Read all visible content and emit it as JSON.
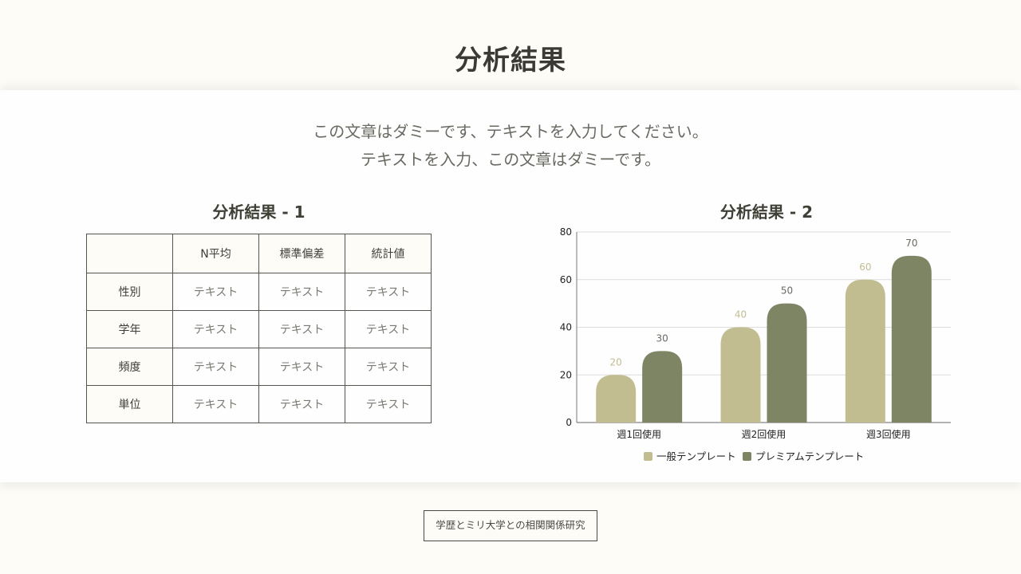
{
  "header": {
    "title": "分析結果"
  },
  "intro": {
    "line1": "この文章はダミーです、テキストを入力してください。",
    "line2": "テキストを入力、この文章はダミーです。"
  },
  "section1": {
    "title": "分析結果 - 1",
    "table": {
      "columns": [
        "",
        "N平均",
        "標準偏差",
        "統計値"
      ],
      "rows": [
        {
          "label": "性別",
          "cells": [
            "テキスト",
            "テキスト",
            "テキスト"
          ]
        },
        {
          "label": "学年",
          "cells": [
            "テキスト",
            "テキスト",
            "テキスト"
          ]
        },
        {
          "label": "頻度",
          "cells": [
            "テキスト",
            "テキスト",
            "テキスト"
          ]
        },
        {
          "label": "単位",
          "cells": [
            "テキスト",
            "テキスト",
            "テキスト"
          ]
        }
      ]
    }
  },
  "section2": {
    "title": "分析結果 - 2"
  },
  "colors": {
    "general": "#c2bd91",
    "premium": "#7d8565",
    "grid": "#dcdcdc",
    "axis": "#555550"
  },
  "chart_data": {
    "type": "bar",
    "title": "分析結果 - 2",
    "categories": [
      "週1回使用",
      "週2回使用",
      "週3回使用"
    ],
    "series": [
      {
        "name": "一般テンプレート",
        "values": [
          20,
          40,
          60
        ],
        "color": "#c2bd91"
      },
      {
        "name": "プレミアムテンプレート",
        "values": [
          30,
          50,
          70
        ],
        "color": "#7d8565"
      }
    ],
    "yticks": [
      0,
      20,
      40,
      60,
      80
    ],
    "ylim": [
      0,
      80
    ],
    "xlabel": "",
    "ylabel": "",
    "grid": true,
    "legend_position": "bottom",
    "data_labels": true
  },
  "footer": {
    "tag": "学歴とミリ大学との相関関係研究"
  }
}
